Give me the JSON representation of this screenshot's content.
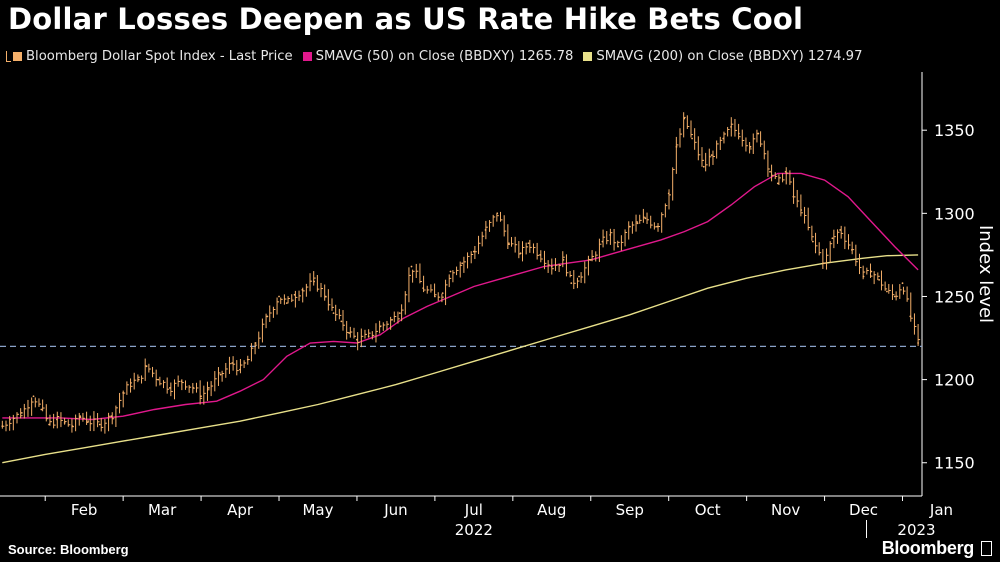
{
  "chart_data": {
    "type": "line",
    "title": "Dollar Losses Deepen as US Rate Hike Bets Cool",
    "ylabel": "Index level",
    "xlabel": "",
    "ylim": [
      1130,
      1385
    ],
    "yticks": [
      1150,
      1200,
      1250,
      1300,
      1350
    ],
    "reference_line": 1220,
    "x_months": [
      "Feb",
      "Mar",
      "Apr",
      "May",
      "Jun",
      "Jul",
      "Aug",
      "Sep",
      "Oct",
      "Nov",
      "Dec",
      "Jan"
    ],
    "x_years": [
      "2022",
      "2023"
    ],
    "x_range_months": [
      0.42,
      12.25
    ],
    "series": [
      {
        "name": "Bloomberg Dollar Spot Index - Last Price",
        "color": "#f5b06a",
        "style": "ohlc",
        "x": [
          0.45,
          0.55,
          0.7,
          0.85,
          0.95,
          1.05,
          1.15,
          1.25,
          1.35,
          1.45,
          1.55,
          1.7,
          1.85,
          2.0,
          2.1,
          2.2,
          2.3,
          2.45,
          2.6,
          2.75,
          2.9,
          3.0,
          3.1,
          3.25,
          3.4,
          3.5,
          3.6,
          3.7,
          3.85,
          4.0,
          4.1,
          4.2,
          4.3,
          4.45,
          4.6,
          4.7,
          4.8,
          4.9,
          5.0,
          5.15,
          5.3,
          5.45,
          5.55,
          5.7,
          5.85,
          6.0,
          6.1,
          6.2,
          6.35,
          6.5,
          6.65,
          6.8,
          6.95,
          7.1,
          7.2,
          7.35,
          7.5,
          7.65,
          7.75,
          7.85,
          8.0,
          8.15,
          8.25,
          8.35,
          8.5,
          8.6,
          8.7,
          8.85,
          9.0,
          9.1,
          9.2,
          9.3,
          9.45,
          9.55,
          9.7,
          9.8,
          9.9,
          10.05,
          10.15,
          10.3,
          10.4,
          10.5,
          10.6,
          10.7,
          10.85,
          11.0,
          11.1,
          11.2,
          11.35,
          11.5,
          11.6,
          11.7,
          11.8,
          11.9,
          12.0,
          12.1,
          12.2
        ],
        "values": [
          1172,
          1176,
          1180,
          1190,
          1182,
          1173,
          1176,
          1174,
          1172,
          1178,
          1175,
          1173,
          1178,
          1192,
          1198,
          1200,
          1208,
          1200,
          1195,
          1199,
          1195,
          1190,
          1195,
          1203,
          1210,
          1206,
          1212,
          1222,
          1238,
          1250,
          1246,
          1251,
          1254,
          1259,
          1250,
          1240,
          1235,
          1228,
          1224,
          1226,
          1232,
          1236,
          1240,
          1268,
          1255,
          1250,
          1252,
          1265,
          1270,
          1277,
          1290,
          1300,
          1282,
          1276,
          1282,
          1275,
          1268,
          1272,
          1258,
          1262,
          1272,
          1283,
          1287,
          1280,
          1292,
          1294,
          1297,
          1292,
          1312,
          1340,
          1357,
          1345,
          1328,
          1335,
          1345,
          1352,
          1348,
          1340,
          1348,
          1325,
          1318,
          1325,
          1310,
          1302,
          1283,
          1270,
          1285,
          1290,
          1278,
          1262,
          1265,
          1260,
          1253,
          1250,
          1258,
          1238,
          1222
        ]
      },
      {
        "name": "SMAVG (50)  on Close (BBDXY) 1265.78",
        "color": "#e0188c",
        "x": [
          0.45,
          0.8,
          1.2,
          1.6,
          2.0,
          2.4,
          2.8,
          3.2,
          3.5,
          3.8,
          4.1,
          4.4,
          4.7,
          5.0,
          5.3,
          5.6,
          5.9,
          6.2,
          6.5,
          6.8,
          7.1,
          7.4,
          7.7,
          8.0,
          8.3,
          8.6,
          8.9,
          9.2,
          9.5,
          9.8,
          10.1,
          10.4,
          10.7,
          11.0,
          11.3,
          11.6,
          11.9,
          12.2
        ],
        "values": [
          1177,
          1177,
          1177,
          1176,
          1178,
          1182,
          1185,
          1187,
          1193,
          1200,
          1214,
          1222,
          1223,
          1222,
          1227,
          1237,
          1244,
          1250,
          1256,
          1260,
          1264,
          1268,
          1270,
          1272,
          1276,
          1280,
          1284,
          1289,
          1295,
          1305,
          1316,
          1324,
          1324,
          1320,
          1310,
          1295,
          1280,
          1266
        ]
      },
      {
        "name": "SMAVG (200)  on Close (BBDXY) 1274.97",
        "color": "#e8e08a",
        "x": [
          0.45,
          1.0,
          1.5,
          2.0,
          2.5,
          3.0,
          3.5,
          4.0,
          4.5,
          5.0,
          5.5,
          6.0,
          6.5,
          7.0,
          7.5,
          8.0,
          8.5,
          9.0,
          9.5,
          10.0,
          10.5,
          11.0,
          11.5,
          11.8,
          12.2
        ],
        "values": [
          1150,
          1155,
          1159,
          1163,
          1167,
          1171,
          1175,
          1180,
          1185,
          1191,
          1197,
          1204,
          1211,
          1218,
          1225,
          1232,
          1239,
          1247,
          1255,
          1261,
          1266,
          1270,
          1273,
          1274.5,
          1275
        ]
      }
    ]
  },
  "footer": {
    "source": "Source: Bloomberg",
    "brand": "Bloomberg"
  }
}
